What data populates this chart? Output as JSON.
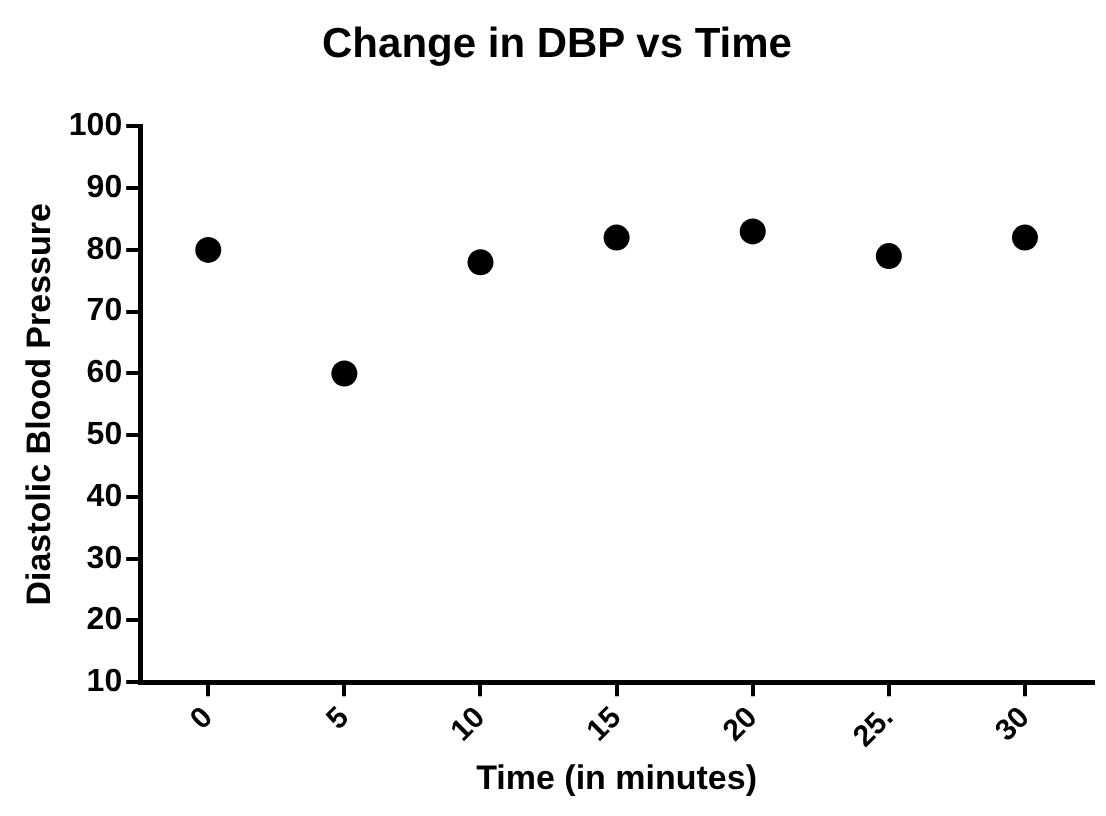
{
  "chart_data": {
    "type": "scatter",
    "title": "Change in DBP vs Time",
    "xlabel": "Time (in minutes)",
    "ylabel": "Diastolic Blood Pressure",
    "categories": [
      "0",
      "5",
      "10",
      "15",
      "20",
      "25.",
      "30"
    ],
    "values": [
      80,
      60,
      78,
      82,
      83,
      79,
      82
    ],
    "color": "#000000",
    "marker": "circle",
    "ylim": [
      10,
      100
    ],
    "yticks": [
      10,
      20,
      30,
      40,
      50,
      60,
      70,
      80,
      90,
      100
    ],
    "grid": false,
    "legend": false
  }
}
